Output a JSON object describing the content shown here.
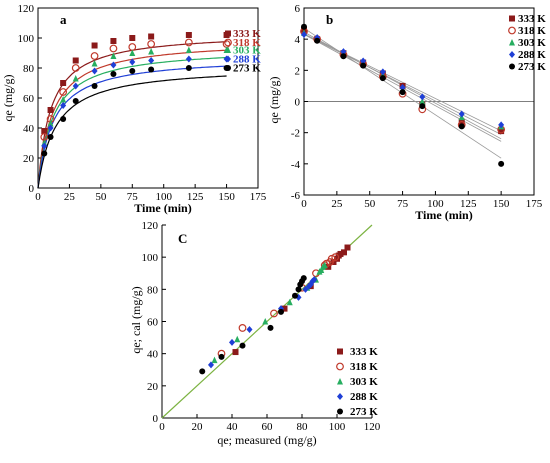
{
  "colors": {
    "333 K": "#8B1A1A",
    "318 K": "#C0392B",
    "303 K": "#27AE60",
    "288 K": "#1F3FD6",
    "273 K": "#000000",
    "fit_line_c": "#7CB342",
    "fit_lines_b": "#999999"
  },
  "chart_data": [
    {
      "panel": "a",
      "type": "scatter",
      "xlabel": "Time (min)",
      "ylabel": "qe (mg/g)",
      "xlim": [
        0,
        175
      ],
      "ylim": [
        0,
        120
      ],
      "xticks": [
        0,
        25,
        50,
        75,
        100,
        125,
        150,
        175
      ],
      "yticks": [
        0,
        20,
        40,
        60,
        80,
        100,
        120
      ],
      "legend_position": "right, at curve ends",
      "fit_curves": true,
      "series": [
        {
          "name": "333 K",
          "marker": "square-filled",
          "x": [
            5,
            10,
            20,
            30,
            45,
            60,
            75,
            90,
            120,
            150
          ],
          "y": [
            38,
            52,
            70,
            85,
            95,
            98,
            100,
            101,
            102,
            102
          ]
        },
        {
          "name": "318 K",
          "marker": "circle-open",
          "x": [
            5,
            10,
            20,
            30,
            45,
            60,
            75,
            90,
            120,
            150
          ],
          "y": [
            34,
            46,
            64,
            80,
            88,
            93,
            94,
            96,
            97,
            96
          ]
        },
        {
          "name": "303 K",
          "marker": "triangle-filled",
          "x": [
            5,
            10,
            20,
            30,
            45,
            60,
            75,
            90,
            120,
            150
          ],
          "y": [
            30,
            43,
            59,
            73,
            83,
            88,
            90,
            91,
            92,
            92
          ]
        },
        {
          "name": "288 K",
          "marker": "diamond-filled",
          "x": [
            5,
            10,
            20,
            30,
            45,
            60,
            75,
            90,
            120,
            150
          ],
          "y": [
            28,
            40,
            55,
            68,
            78,
            82,
            84,
            85,
            86,
            86
          ]
        },
        {
          "name": "273 K",
          "marker": "circle-filled",
          "x": [
            5,
            10,
            20,
            30,
            45,
            60,
            75,
            90,
            120,
            150
          ],
          "y": [
            23,
            34,
            46,
            58,
            68,
            76,
            78,
            79,
            80,
            80
          ]
        }
      ]
    },
    {
      "panel": "b",
      "type": "scatter",
      "xlabel": "Time (min)",
      "ylabel": "qe (mg/g)",
      "xlim": [
        0,
        175
      ],
      "ylim": [
        -6,
        6
      ],
      "xticks": [
        0,
        25,
        50,
        75,
        100,
        125,
        150,
        175
      ],
      "yticks": [
        -6,
        -4,
        -2,
        0,
        2,
        4,
        6
      ],
      "legend_position": "top-right",
      "fit_lines": true,
      "series": [
        {
          "name": "333 K",
          "marker": "square-filled",
          "x": [
            0,
            10,
            30,
            45,
            60,
            75,
            90,
            120,
            150
          ],
          "y": [
            4.6,
            4.0,
            3.1,
            2.5,
            1.8,
            1.0,
            -0.2,
            -1.3,
            -1.9
          ]
        },
        {
          "name": "318 K",
          "marker": "circle-open",
          "x": [
            0,
            10,
            30,
            45,
            60,
            75,
            90,
            120,
            150
          ],
          "y": [
            4.5,
            4.0,
            3.0,
            2.4,
            1.6,
            0.5,
            -0.5,
            -1.5,
            -1.8
          ]
        },
        {
          "name": "303 K",
          "marker": "triangle-filled",
          "x": [
            0,
            10,
            30,
            45,
            60,
            75,
            90,
            120,
            150
          ],
          "y": [
            4.4,
            4.1,
            3.1,
            2.5,
            1.7,
            0.8,
            0.0,
            -1.0,
            -1.6
          ]
        },
        {
          "name": "288 K",
          "marker": "diamond-filled",
          "x": [
            0,
            10,
            30,
            45,
            60,
            75,
            90,
            120,
            150
          ],
          "y": [
            4.3,
            4.1,
            3.2,
            2.6,
            1.9,
            0.9,
            0.3,
            -0.8,
            -1.5
          ]
        },
        {
          "name": "273 K",
          "marker": "circle-filled",
          "x": [
            0,
            10,
            30,
            45,
            60,
            75,
            90,
            120,
            150
          ],
          "y": [
            4.8,
            3.9,
            2.9,
            2.3,
            1.5,
            0.6,
            -0.3,
            -1.6,
            -4.0
          ]
        }
      ]
    },
    {
      "panel": "C",
      "type": "scatter",
      "xlabel": "qe; measured (mg/g)",
      "ylabel": "qe; cal (mg/g)",
      "xlim": [
        0,
        120
      ],
      "ylim": [
        0,
        120
      ],
      "xticks": [
        0,
        20,
        40,
        60,
        80,
        100,
        120
      ],
      "yticks": [
        0,
        20,
        40,
        60,
        80,
        100,
        120
      ],
      "legend_position": "bottom-right",
      "identity_line": true,
      "series": [
        {
          "name": "333 K",
          "marker": "square-filled",
          "x": [
            42,
            70,
            85,
            95,
            98,
            100,
            101,
            102,
            104,
            106
          ],
          "y": [
            41,
            68,
            82,
            94,
            97,
            99,
            101,
            102,
            103,
            106
          ]
        },
        {
          "name": "318 K",
          "marker": "circle-open",
          "x": [
            34,
            46,
            64,
            80,
            88,
            93,
            94,
            96,
            97,
            99
          ],
          "y": [
            40,
            56,
            65,
            81,
            90,
            95,
            96,
            97,
            99,
            100
          ]
        },
        {
          "name": "303 K",
          "marker": "triangle-filled",
          "x": [
            30,
            43,
            59,
            73,
            83,
            88,
            90,
            91,
            92,
            93
          ],
          "y": [
            36,
            49,
            60,
            72,
            81,
            86,
            91,
            92,
            94,
            95
          ]
        },
        {
          "name": "288 K",
          "marker": "diamond-filled",
          "x": [
            28,
            40,
            50,
            68,
            78,
            82,
            84,
            85,
            86,
            87
          ],
          "y": [
            33,
            47,
            55,
            68,
            75,
            80,
            82,
            83,
            85,
            86
          ]
        },
        {
          "name": "273 K",
          "marker": "circle-filled",
          "x": [
            23,
            34,
            46,
            62,
            68,
            76,
            78,
            79,
            80,
            81
          ],
          "y": [
            29,
            38,
            45,
            56,
            66,
            76,
            80,
            83,
            85,
            87
          ]
        }
      ]
    }
  ]
}
